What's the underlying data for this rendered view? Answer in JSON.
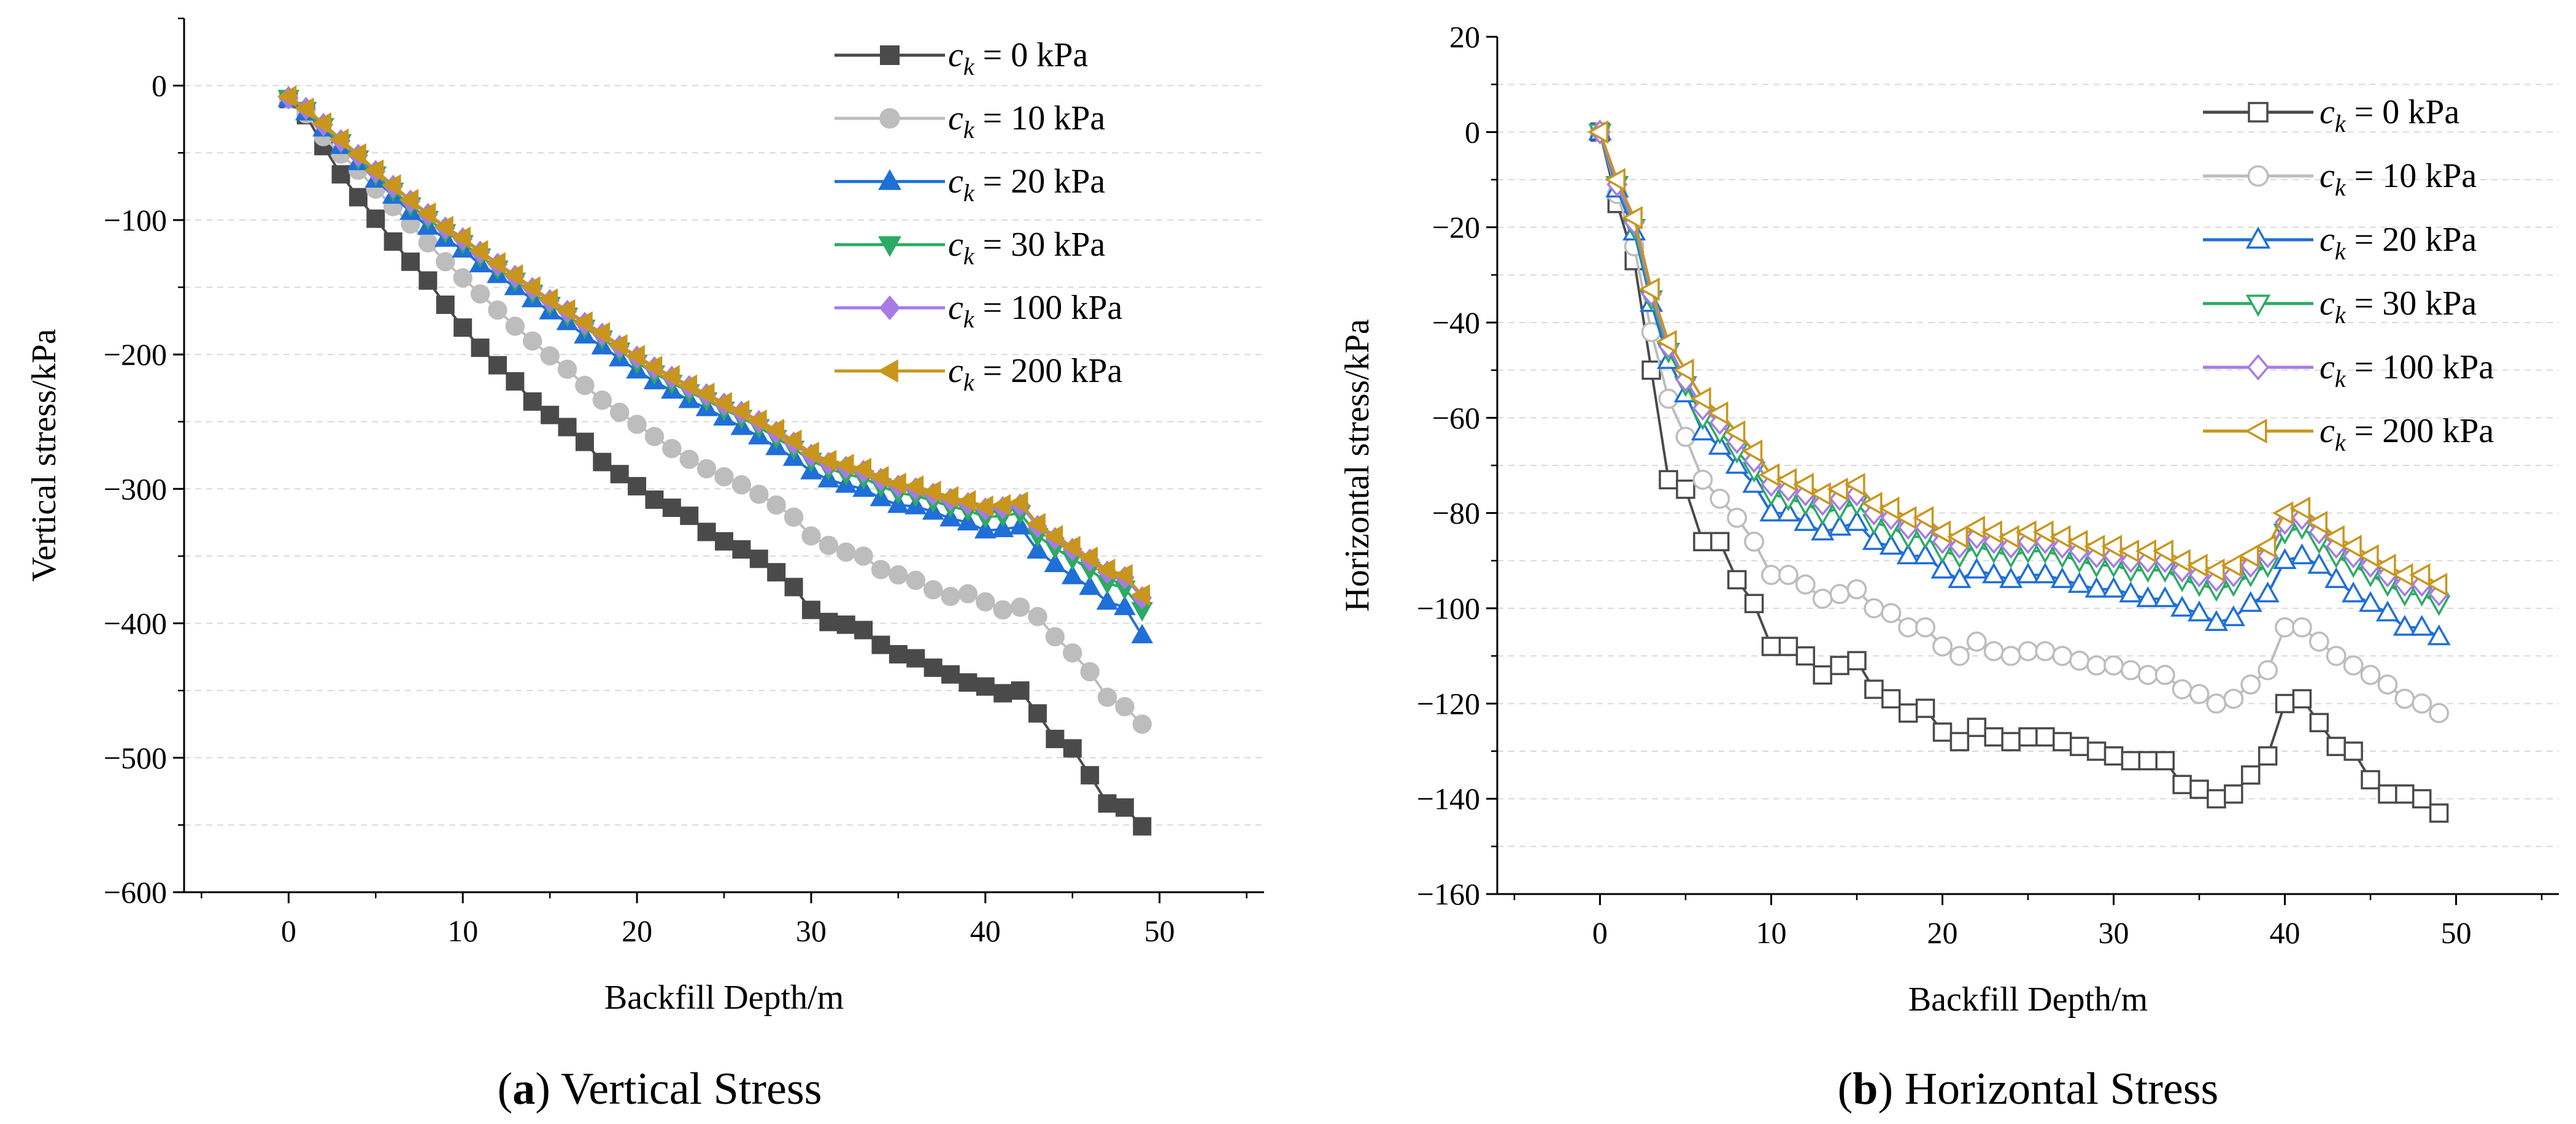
{
  "chart_data": [
    {
      "type": "line",
      "caption_label": "a",
      "caption_title": " Vertical Stress",
      "xlabel": "Backfill Depth/m",
      "ylabel": "Vertical stress/kPa",
      "xlim": [
        -6,
        56
      ],
      "ylim": [
        -600,
        50
      ],
      "xticks": [
        0,
        10,
        20,
        30,
        40,
        50
      ],
      "xtick_labels": [
        "0",
        "10",
        "20",
        "30",
        "40",
        "50"
      ],
      "yticks": [
        0,
        -100,
        -200,
        -300,
        -400,
        -500,
        -600
      ],
      "ytick_labels": [
        "0",
        "−100",
        "−200",
        "−300",
        "−400",
        "−500",
        "−600"
      ],
      "grid": "horizontal dashed",
      "legend_position": "top-right",
      "marker_fill": "filled",
      "x": [
        0,
        1,
        2,
        3,
        4,
        5,
        6,
        7,
        8,
        9,
        10,
        11,
        12,
        13,
        14,
        15,
        16,
        17,
        18,
        19,
        20,
        21,
        22,
        23,
        24,
        25,
        26,
        27,
        28,
        29,
        30,
        31,
        32,
        33,
        34,
        35,
        36,
        37,
        38,
        39,
        40,
        41,
        42,
        43,
        44,
        45,
        46,
        47,
        48,
        49
      ],
      "series": [
        {
          "name": "c_k = 0 kPa",
          "symbol": "c",
          "subscript": "k",
          "suffix": " = 0 kPa",
          "color": "#4a4a4a",
          "marker": "square",
          "values": [
            -10,
            -22,
            -45,
            -66,
            -83,
            -99,
            -116,
            -131,
            -145,
            -163,
            -180,
            -195,
            -208,
            -220,
            -235,
            -245,
            -254,
            -265,
            -280,
            -289,
            -298,
            -308,
            -314,
            -320,
            -332,
            -339,
            -345,
            -352,
            -362,
            -373,
            -390,
            -399,
            -401,
            -405,
            -416,
            -423,
            -426,
            -433,
            -438,
            -444,
            -447,
            -452,
            -450,
            -467,
            -486,
            -493,
            -513,
            -534,
            -537,
            -551
          ]
        },
        {
          "name": "c_k = 10 kPa",
          "symbol": "c",
          "subscript": "k",
          "suffix": " = 10 kPa",
          "color": "#bdbdbd",
          "marker": "circle",
          "values": [
            -10,
            -21,
            -38,
            -51,
            -63,
            -77,
            -90,
            -103,
            -117,
            -131,
            -143,
            -155,
            -167,
            -179,
            -190,
            -201,
            -211,
            -223,
            -234,
            -243,
            -252,
            -261,
            -270,
            -278,
            -285,
            -291,
            -297,
            -304,
            -312,
            -321,
            -335,
            -342,
            -347,
            -350,
            -360,
            -364,
            -368,
            -375,
            -380,
            -378,
            -384,
            -390,
            -388,
            -395,
            -410,
            -422,
            -436,
            -455,
            -462,
            -475
          ]
        },
        {
          "name": "c_k = 20 kPa",
          "symbol": "c",
          "subscript": "k",
          "suffix": " = 20 kPa",
          "color": "#1f6fd8",
          "marker": "triangle-up",
          "values": [
            -10,
            -20,
            -32,
            -45,
            -57,
            -70,
            -82,
            -94,
            -105,
            -114,
            -122,
            -133,
            -141,
            -150,
            -159,
            -168,
            -176,
            -186,
            -194,
            -203,
            -212,
            -220,
            -227,
            -234,
            -240,
            -247,
            -254,
            -261,
            -269,
            -277,
            -287,
            -293,
            -297,
            -300,
            -307,
            -312,
            -313,
            -317,
            -322,
            -325,
            -331,
            -330,
            -328,
            -346,
            -356,
            -365,
            -373,
            -384,
            -388,
            -409
          ]
        },
        {
          "name": "c_k = 30 kPa",
          "symbol": "c",
          "subscript": "k",
          "suffix": " = 30 kPa",
          "color": "#2bab63",
          "marker": "triangle-down",
          "values": [
            -9,
            -18,
            -30,
            -42,
            -54,
            -66,
            -78,
            -89,
            -99,
            -109,
            -117,
            -127,
            -136,
            -145,
            -154,
            -163,
            -171,
            -180,
            -188,
            -197,
            -206,
            -214,
            -221,
            -228,
            -234,
            -241,
            -247,
            -254,
            -262,
            -270,
            -279,
            -285,
            -289,
            -292,
            -298,
            -303,
            -305,
            -309,
            -313,
            -316,
            -321,
            -320,
            -318,
            -335,
            -344,
            -352,
            -360,
            -370,
            -374,
            -390
          ]
        },
        {
          "name": "c_k = 100 kPa",
          "symbol": "c",
          "subscript": "k",
          "suffix": " = 100 kPa",
          "color": "#a77ae6",
          "marker": "diamond",
          "values": [
            -9,
            -17,
            -29,
            -41,
            -52,
            -64,
            -75,
            -86,
            -96,
            -106,
            -114,
            -124,
            -133,
            -142,
            -151,
            -160,
            -168,
            -177,
            -185,
            -194,
            -202,
            -210,
            -217,
            -224,
            -230,
            -237,
            -243,
            -250,
            -258,
            -266,
            -275,
            -281,
            -284,
            -287,
            -293,
            -298,
            -300,
            -304,
            -308,
            -311,
            -315,
            -314,
            -312,
            -328,
            -337,
            -345,
            -353,
            -362,
            -366,
            -381
          ]
        },
        {
          "name": "c_k = 200 kPa",
          "symbol": "c",
          "subscript": "k",
          "suffix": " = 200 kPa",
          "color": "#c8961c",
          "marker": "triangle-left",
          "values": [
            -8,
            -17,
            -28,
            -40,
            -51,
            -63,
            -74,
            -85,
            -95,
            -105,
            -113,
            -123,
            -132,
            -141,
            -150,
            -159,
            -167,
            -176,
            -184,
            -193,
            -201,
            -209,
            -216,
            -223,
            -229,
            -236,
            -242,
            -249,
            -256,
            -264,
            -273,
            -279,
            -282,
            -285,
            -291,
            -296,
            -298,
            -302,
            -306,
            -309,
            -313,
            -312,
            -310,
            -326,
            -335,
            -343,
            -351,
            -360,
            -364,
            -379
          ]
        }
      ]
    },
    {
      "type": "line",
      "caption_label": "b",
      "caption_title": " Horizontal Stress",
      "xlabel": "Backfill Depth/m",
      "ylabel": "Horizontal stress/kPa",
      "xlim": [
        -6,
        56
      ],
      "ylim": [
        -160,
        20
      ],
      "xticks": [
        0,
        10,
        20,
        30,
        40,
        50
      ],
      "xtick_labels": [
        "0",
        "10",
        "20",
        "30",
        "40",
        "50"
      ],
      "yticks": [
        20,
        0,
        -20,
        -40,
        -60,
        -80,
        -100,
        -120,
        -140,
        -160
      ],
      "ytick_labels": [
        "20",
        "0",
        "−20",
        "−40",
        "−60",
        "−80",
        "−100",
        "−120",
        "−140",
        "−160"
      ],
      "grid": "horizontal dashed",
      "legend_position": "top-right",
      "marker_fill": "hollow",
      "x": [
        0,
        1,
        2,
        3,
        4,
        5,
        6,
        7,
        8,
        9,
        10,
        11,
        12,
        13,
        14,
        15,
        16,
        17,
        18,
        19,
        20,
        21,
        22,
        23,
        24,
        25,
        26,
        27,
        28,
        29,
        30,
        31,
        32,
        33,
        34,
        35,
        36,
        37,
        38,
        39,
        40,
        41,
        42,
        43,
        44,
        45,
        46,
        47,
        48,
        49
      ],
      "series": [
        {
          "name": "c_k = 0 kPa",
          "symbol": "c",
          "subscript": "k",
          "suffix": " = 0 kPa",
          "color": "#4a4a4a",
          "marker": "square",
          "values": [
            0,
            -15,
            -27,
            -50,
            -73,
            -75,
            -86,
            -86,
            -94,
            -99,
            -108,
            -108,
            -110,
            -114,
            -112,
            -111,
            -117,
            -119,
            -122,
            -121,
            -126,
            -128,
            -125,
            -127,
            -128,
            -127,
            -127,
            -128,
            -129,
            -130,
            -131,
            -132,
            -132,
            -132,
            -137,
            -138,
            -140,
            -139,
            -135,
            -131,
            -120,
            -119,
            -124,
            -129,
            -130,
            -136,
            -139,
            -139,
            -140,
            -143
          ]
        },
        {
          "name": "c_k = 10 kPa",
          "symbol": "c",
          "subscript": "k",
          "suffix": " = 10 kPa",
          "color": "#bdbdbd",
          "marker": "circle",
          "values": [
            0,
            -13,
            -24,
            -42,
            -56,
            -64,
            -73,
            -77,
            -81,
            -86,
            -93,
            -93,
            -95,
            -98,
            -97,
            -96,
            -100,
            -101,
            -104,
            -104,
            -108,
            -110,
            -107,
            -109,
            -110,
            -109,
            -109,
            -110,
            -111,
            -112,
            -112,
            -113,
            -114,
            -114,
            -117,
            -118,
            -120,
            -119,
            -116,
            -113,
            -104,
            -104,
            -107,
            -110,
            -112,
            -114,
            -116,
            -119,
            -120,
            -122
          ]
        },
        {
          "name": "c_k = 20 kPa",
          "symbol": "c",
          "subscript": "k",
          "suffix": " = 20 kPa",
          "color": "#1f6fd8",
          "marker": "triangle-up",
          "values": [
            0,
            -12,
            -21,
            -36,
            -48,
            -55,
            -63,
            -66,
            -70,
            -74,
            -80,
            -80,
            -82,
            -84,
            -83,
            -82,
            -86,
            -87,
            -89,
            -89,
            -92,
            -94,
            -92,
            -93,
            -94,
            -93,
            -93,
            -94,
            -95,
            -96,
            -96,
            -97,
            -98,
            -98,
            -100,
            -101,
            -103,
            -102,
            -99,
            -97,
            -90,
            -89,
            -91,
            -94,
            -97,
            -99,
            -101,
            -104,
            -104,
            -106
          ]
        },
        {
          "name": "c_k = 30 kPa",
          "symbol": "c",
          "subscript": "k",
          "suffix": " = 30 kPa",
          "color": "#2bab63",
          "marker": "triangle-down",
          "values": [
            0,
            -11,
            -20,
            -35,
            -46,
            -53,
            -60,
            -63,
            -67,
            -71,
            -76,
            -77,
            -78,
            -80,
            -79,
            -78,
            -82,
            -83,
            -85,
            -85,
            -88,
            -89,
            -87,
            -88,
            -89,
            -88,
            -88,
            -89,
            -90,
            -91,
            -91,
            -92,
            -92,
            -92,
            -94,
            -95,
            -96,
            -95,
            -93,
            -91,
            -84,
            -83,
            -86,
            -89,
            -91,
            -93,
            -95,
            -97,
            -97,
            -99
          ]
        },
        {
          "name": "c_k = 100 kPa",
          "symbol": "c",
          "subscript": "k",
          "suffix": " = 100 kPa",
          "color": "#a77ae6",
          "marker": "diamond",
          "values": [
            0,
            -11,
            -19,
            -34,
            -45,
            -52,
            -58,
            -61,
            -65,
            -69,
            -74,
            -75,
            -76,
            -78,
            -77,
            -76,
            -80,
            -81,
            -83,
            -83,
            -86,
            -87,
            -85,
            -86,
            -87,
            -86,
            -86,
            -87,
            -88,
            -89,
            -89,
            -90,
            -90,
            -90,
            -92,
            -93,
            -94,
            -93,
            -91,
            -89,
            -82,
            -81,
            -84,
            -87,
            -89,
            -91,
            -93,
            -95,
            -95,
            -97
          ]
        },
        {
          "name": "c_k = 200 kPa",
          "symbol": "c",
          "subscript": "k",
          "suffix": " = 200 kPa",
          "color": "#c8961c",
          "marker": "triangle-left",
          "values": [
            0,
            -10,
            -18,
            -33,
            -44,
            -50,
            -56,
            -59,
            -63,
            -67,
            -72,
            -73,
            -74,
            -76,
            -75,
            -74,
            -78,
            -79,
            -81,
            -81,
            -84,
            -85,
            -83,
            -84,
            -85,
            -84,
            -84,
            -85,
            -86,
            -87,
            -87,
            -88,
            -88,
            -88,
            -90,
            -91,
            -92,
            -91,
            -89,
            -87,
            -80,
            -79,
            -82,
            -85,
            -87,
            -89,
            -91,
            -93,
            -93,
            -95
          ]
        }
      ]
    }
  ]
}
